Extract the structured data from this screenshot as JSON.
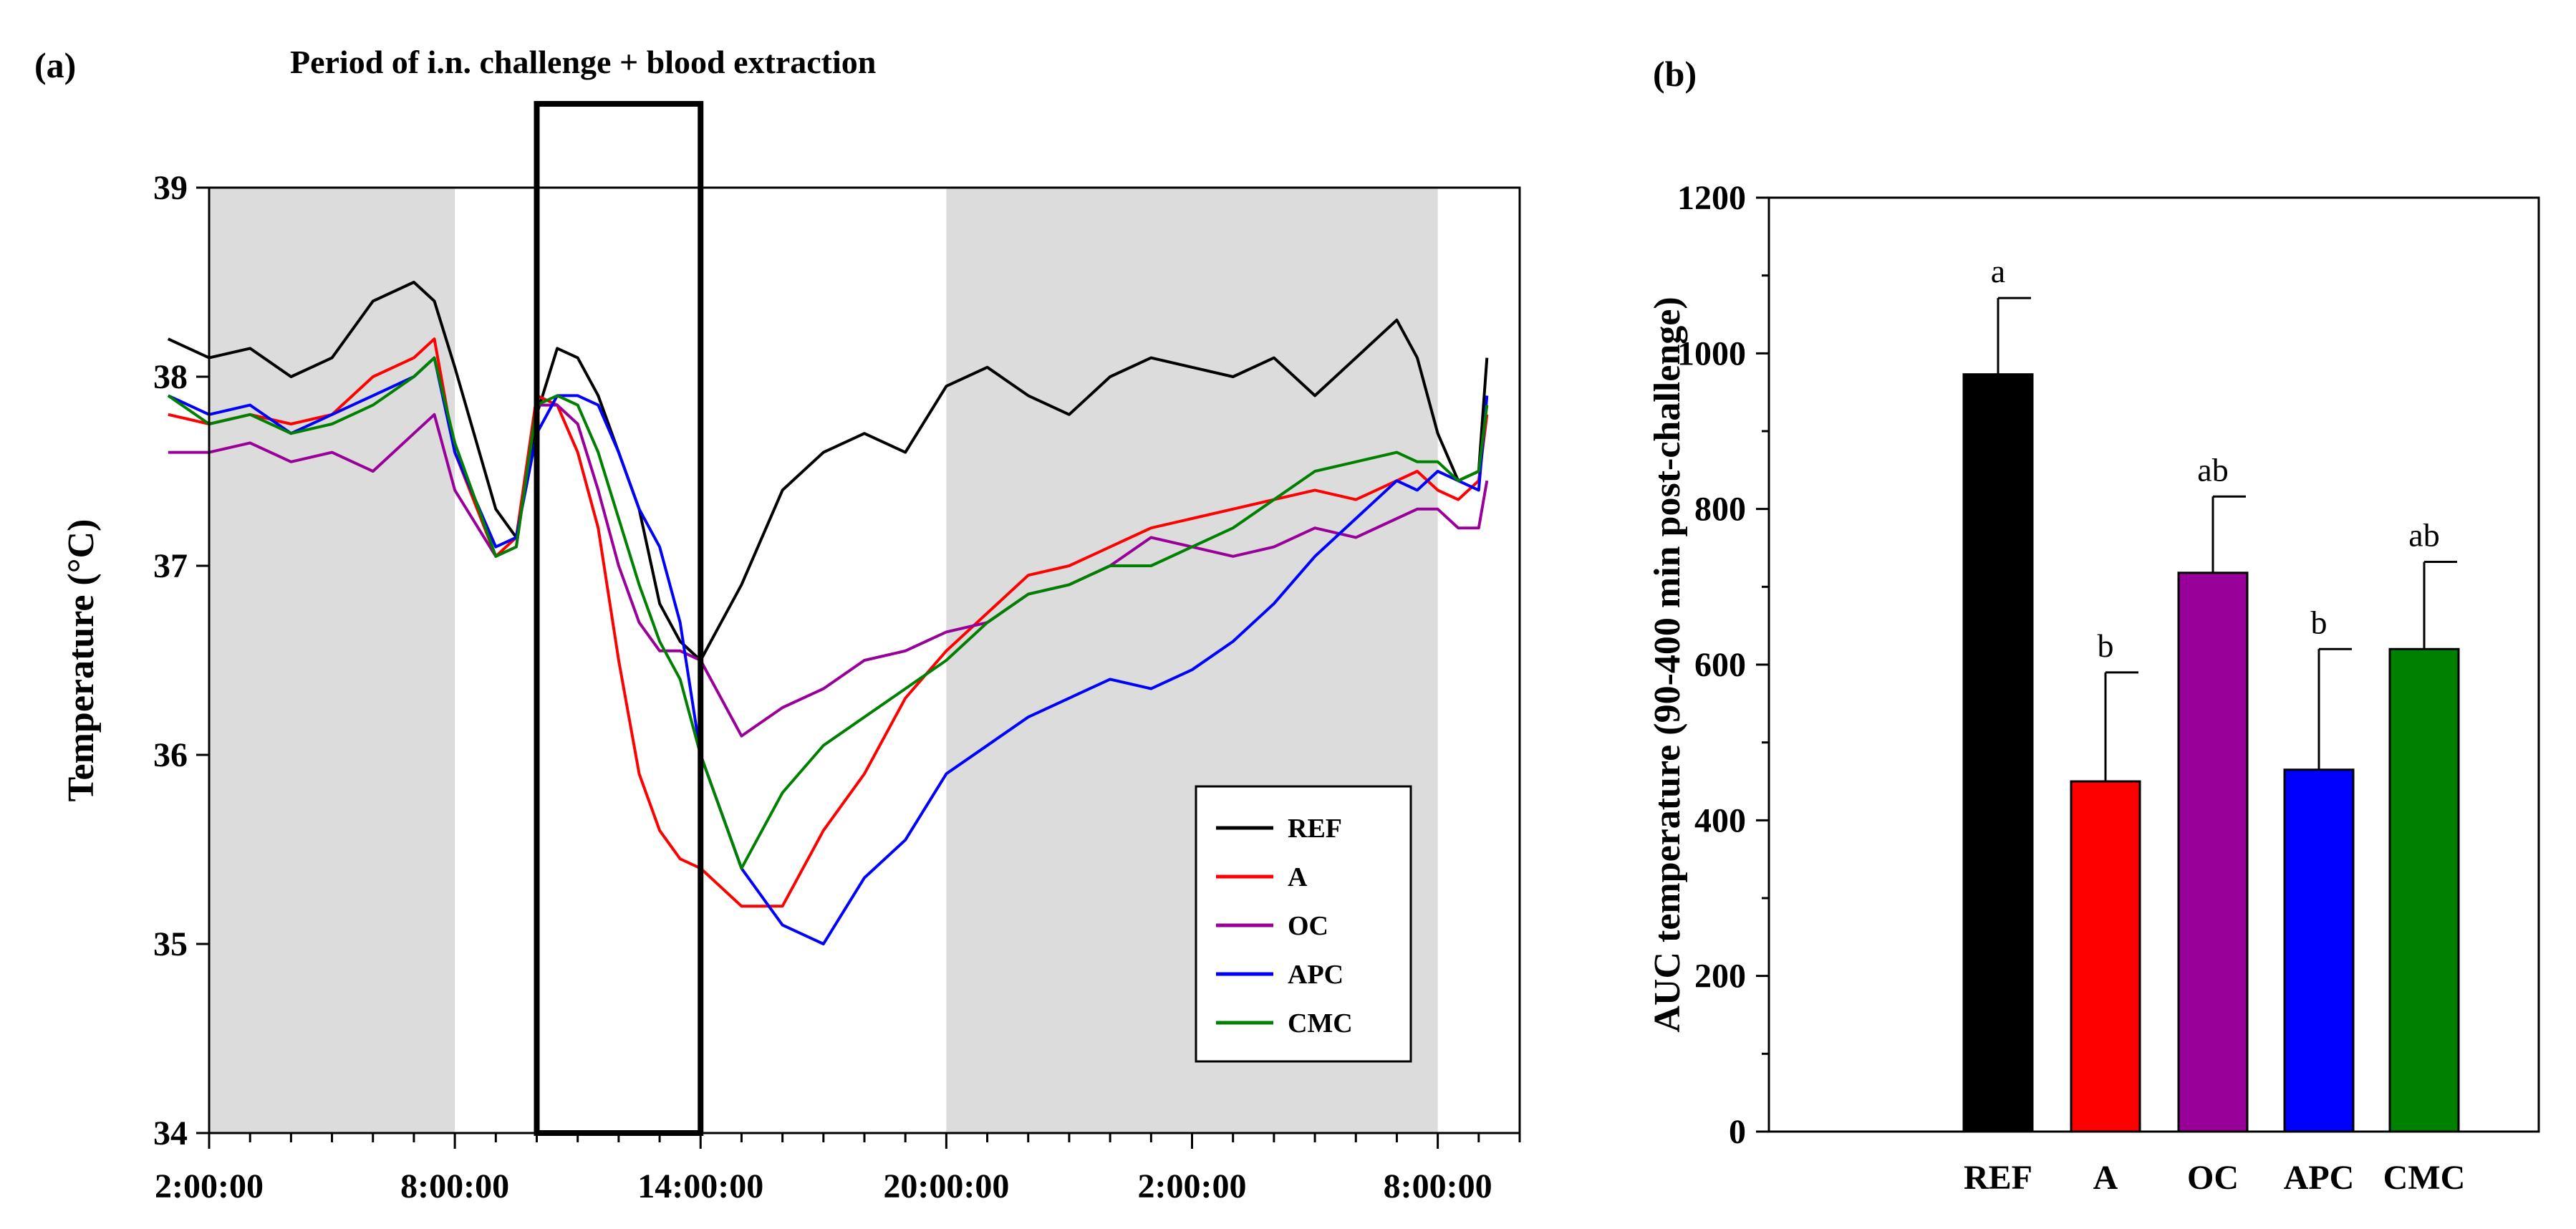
{
  "chart_data": [
    {
      "panel": "(a)",
      "type": "line",
      "title": "",
      "annotation": "Period of i.n. challenge + blood extraction",
      "xlabel": "",
      "ylabel": "Temperature (°C)",
      "ylim": [
        34,
        39
      ],
      "yticks": [
        34,
        35,
        36,
        37,
        38,
        39
      ],
      "xlim": [
        0,
        32
      ],
      "xticks": [
        {
          "value": 0,
          "label": "2:00:00"
        },
        {
          "value": 6,
          "label": "8:00:00"
        },
        {
          "value": 12,
          "label": "14:00:00"
        },
        {
          "value": 18,
          "label": "20:00:00"
        },
        {
          "value": 24,
          "label": "2:00:00"
        },
        {
          "value": 30,
          "label": "8:00:00"
        }
      ],
      "x_unit": "hours since 2:00:00",
      "dark_periods_hours": [
        [
          -1,
          6
        ],
        [
          18,
          30
        ]
      ],
      "challenge_window_hours": [
        8,
        12
      ],
      "legend_position": "lower-right",
      "colors": {
        "REF": "#000000",
        "A": "#ff0000",
        "OC": "#990099",
        "APC": "#0000ff",
        "CMC": "#008000",
        "shade": "#dcdcdc"
      },
      "series": [
        {
          "name": "REF",
          "x": [
            -1,
            0,
            1,
            2,
            3,
            4,
            5,
            5.5,
            6,
            7,
            7.5,
            8,
            8.5,
            9,
            9.5,
            10,
            10.5,
            11,
            11.5,
            12,
            13,
            14,
            15,
            16,
            17,
            18,
            19,
            20,
            21,
            22,
            23,
            24,
            25,
            26,
            27,
            28,
            29,
            29.5,
            30,
            30.5,
            31,
            31.2
          ],
          "values": [
            38.2,
            38.1,
            38.15,
            38.0,
            38.1,
            38.4,
            38.5,
            38.4,
            38.05,
            37.3,
            37.15,
            37.8,
            38.15,
            38.1,
            37.9,
            37.6,
            37.3,
            36.8,
            36.6,
            36.5,
            36.9,
            37.4,
            37.6,
            37.7,
            37.6,
            37.95,
            38.05,
            37.9,
            37.8,
            38.0,
            38.1,
            38.05,
            38.0,
            38.1,
            37.9,
            38.1,
            38.3,
            38.1,
            37.7,
            37.45,
            37.5,
            38.1
          ]
        },
        {
          "name": "A",
          "x": [
            -1,
            0,
            1,
            2,
            3,
            4,
            5,
            5.5,
            6,
            7,
            7.5,
            8,
            8.5,
            9,
            9.5,
            10,
            10.5,
            11,
            11.5,
            12,
            13,
            14,
            15,
            16,
            17,
            18,
            19,
            20,
            21,
            22,
            23,
            24,
            25,
            26,
            27,
            28,
            29,
            29.5,
            30,
            30.5,
            31,
            31.2
          ],
          "values": [
            37.8,
            37.75,
            37.8,
            37.75,
            37.8,
            38.0,
            38.1,
            38.2,
            37.6,
            37.05,
            37.15,
            37.9,
            37.85,
            37.6,
            37.2,
            36.5,
            35.9,
            35.6,
            35.45,
            35.4,
            35.2,
            35.2,
            35.6,
            35.9,
            36.3,
            36.55,
            36.75,
            36.95,
            37.0,
            37.1,
            37.2,
            37.25,
            37.3,
            37.35,
            37.4,
            37.35,
            37.45,
            37.5,
            37.4,
            37.35,
            37.45,
            37.8
          ]
        },
        {
          "name": "OC",
          "x": [
            -1,
            0,
            1,
            2,
            3,
            4,
            5,
            5.5,
            6,
            7,
            7.5,
            8,
            8.5,
            9,
            9.5,
            10,
            10.5,
            11,
            11.5,
            12,
            13,
            14,
            15,
            16,
            17,
            18,
            19,
            20,
            21,
            22,
            23,
            24,
            25,
            26,
            27,
            28,
            29,
            29.5,
            30,
            30.5,
            31,
            31.2
          ],
          "values": [
            37.6,
            37.6,
            37.65,
            37.55,
            37.6,
            37.5,
            37.7,
            37.8,
            37.4,
            37.05,
            37.1,
            37.85,
            37.85,
            37.75,
            37.4,
            37.0,
            36.7,
            36.55,
            36.55,
            36.5,
            36.1,
            36.25,
            36.35,
            36.5,
            36.55,
            36.65,
            36.7,
            36.85,
            36.9,
            37.0,
            37.15,
            37.1,
            37.05,
            37.1,
            37.2,
            37.15,
            37.25,
            37.3,
            37.3,
            37.2,
            37.2,
            37.45
          ]
        },
        {
          "name": "APC",
          "x": [
            -1,
            0,
            1,
            2,
            3,
            4,
            5,
            5.5,
            6,
            7,
            7.5,
            8,
            8.5,
            9,
            9.5,
            10,
            10.5,
            11,
            11.5,
            12,
            13,
            14,
            15,
            16,
            17,
            18,
            19,
            20,
            21,
            22,
            23,
            24,
            25,
            26,
            27,
            28,
            29,
            29.5,
            30,
            30.5,
            31,
            31.2
          ],
          "values": [
            37.9,
            37.8,
            37.85,
            37.7,
            37.8,
            37.9,
            38.0,
            38.1,
            37.6,
            37.1,
            37.15,
            37.7,
            37.9,
            37.9,
            37.85,
            37.6,
            37.3,
            37.1,
            36.7,
            36.0,
            35.4,
            35.1,
            35.0,
            35.35,
            35.55,
            35.9,
            36.05,
            36.2,
            36.3,
            36.4,
            36.35,
            36.45,
            36.6,
            36.8,
            37.05,
            37.25,
            37.45,
            37.4,
            37.5,
            37.45,
            37.4,
            37.9
          ]
        },
        {
          "name": "CMC",
          "x": [
            -1,
            0,
            1,
            2,
            3,
            4,
            5,
            5.5,
            6,
            7,
            7.5,
            8,
            8.5,
            9,
            9.5,
            10,
            10.5,
            11,
            11.5,
            12,
            13,
            14,
            15,
            16,
            17,
            18,
            19,
            20,
            21,
            22,
            23,
            24,
            25,
            26,
            27,
            28,
            29,
            29.5,
            30,
            30.5,
            31,
            31.2
          ],
          "values": [
            37.9,
            37.75,
            37.8,
            37.7,
            37.75,
            37.85,
            38.0,
            38.1,
            37.65,
            37.05,
            37.1,
            37.85,
            37.9,
            37.85,
            37.6,
            37.25,
            36.9,
            36.6,
            36.4,
            36.0,
            35.4,
            35.8,
            36.05,
            36.2,
            36.35,
            36.5,
            36.7,
            36.85,
            36.9,
            37.0,
            37.0,
            37.1,
            37.2,
            37.35,
            37.5,
            37.55,
            37.6,
            37.55,
            37.55,
            37.45,
            37.5,
            37.85
          ]
        }
      ]
    },
    {
      "panel": "(b)",
      "type": "bar",
      "title": "",
      "xlabel": "",
      "ylabel": "AUC temperature (90-400 min post-challenge)",
      "ylim": [
        0,
        1200
      ],
      "yticks": [
        0,
        200,
        400,
        600,
        800,
        1000,
        1200
      ],
      "categories": [
        "REF",
        "A",
        "OC",
        "APC",
        "CMC"
      ],
      "values": [
        973,
        450,
        718,
        465,
        620
      ],
      "errors": [
        98,
        140,
        98,
        155,
        112
      ],
      "significance_labels": [
        "a",
        "b",
        "ab",
        "b",
        "ab"
      ],
      "colors": [
        "#000000",
        "#ff0000",
        "#990099",
        "#0000ff",
        "#008000"
      ]
    }
  ]
}
